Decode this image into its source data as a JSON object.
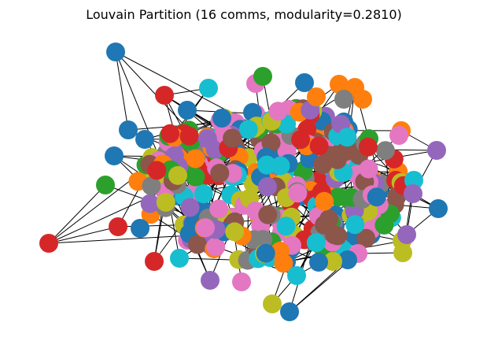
{
  "figure": {
    "title": "Louvain Partition (16 comms, modularity=0.2810)"
  },
  "graph": {
    "algorithm": "Louvain",
    "community_count": 16,
    "modularity": 0.281,
    "edge_color": "#000000",
    "background_color": "#ffffff",
    "palette": [
      "#1f77b4",
      "#ff7f0e",
      "#2ca02c",
      "#d62728",
      "#9467bd",
      "#8c564b",
      "#e377c2",
      "#7f7f7f",
      "#bcbd22",
      "#17becf"
    ]
  }
}
